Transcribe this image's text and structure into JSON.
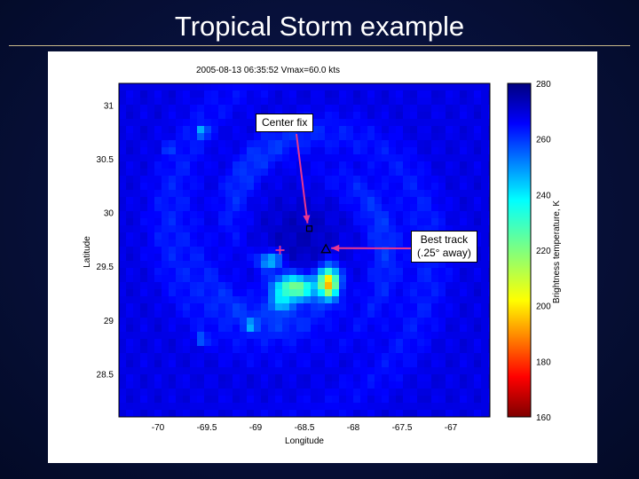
{
  "slide": {
    "title": "Tropical Storm example"
  },
  "chart_data": {
    "type": "heatmap",
    "title": "2005-08-13 06:35:52    Vmax=60.0 kts",
    "xlabel": "Longitude",
    "ylabel": "Latitude",
    "xlim": [
      -70.4,
      -66.6
    ],
    "ylim": [
      28.1,
      31.2
    ],
    "xticks": [
      -70,
      -69.5,
      -69,
      -68.5,
      -68,
      -67.5,
      -67
    ],
    "yticks": [
      31,
      30.5,
      30,
      29.5,
      29,
      28.5
    ],
    "colorbar": {
      "label": "Brightness temperature, K",
      "range": [
        160,
        280
      ],
      "ticks": [
        280,
        260,
        240,
        220,
        200,
        180,
        160
      ],
      "colormap": "jet reversed (dark red = cold, dark blue = warm)"
    },
    "markers": [
      {
        "label": "Center fix",
        "symbol": "square",
        "lon": -68.45,
        "lat": 29.85
      },
      {
        "label": "Best track\n(.25° away)",
        "symbol": "triangle",
        "lon": -68.28,
        "lat": 29.66
      },
      {
        "label": "",
        "symbol": "plus",
        "lon": -68.75,
        "lat": 29.65
      }
    ],
    "annotations": [
      "Center fix",
      "Best track",
      "(.25° away)"
    ],
    "annotation_color": "#e8368f"
  }
}
